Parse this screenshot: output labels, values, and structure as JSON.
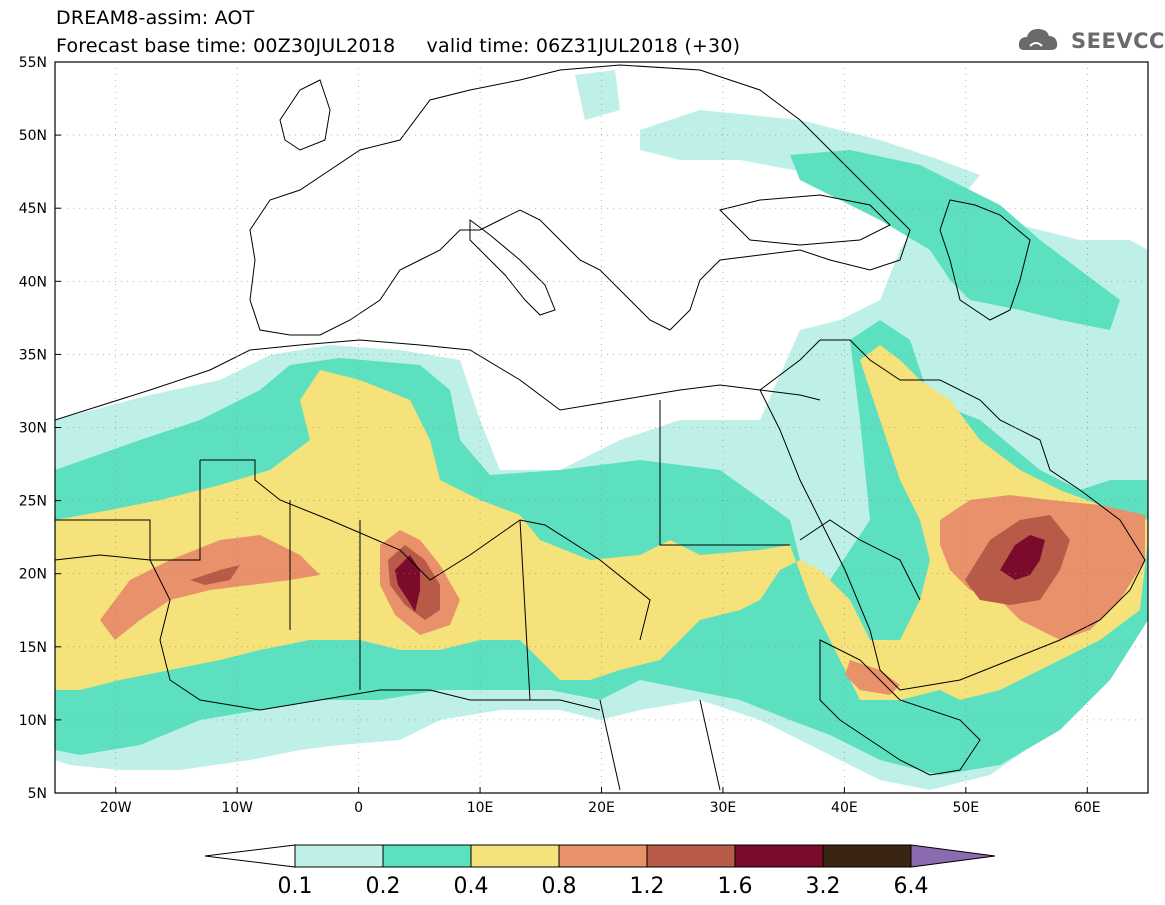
{
  "header": {
    "line1": "DREAM8-assim: AOT",
    "line2": "Forecast base time: 00Z30JUL2018     valid time: 06Z31JUL2018 (+30)"
  },
  "logo": {
    "text": "SEEVCCC",
    "icon": "cloud-logo-icon"
  },
  "map": {
    "lon_range": [
      -25,
      65
    ],
    "lat_range": [
      5,
      55
    ],
    "lat_labels": [
      "55N",
      "50N",
      "45N",
      "40N",
      "35N",
      "30N",
      "25N",
      "20N",
      "15N",
      "10N",
      "5N"
    ],
    "lon_labels": [
      "20W",
      "10W",
      "0",
      "10E",
      "20E",
      "30E",
      "40E",
      "50E",
      "60E"
    ]
  },
  "colorbar": {
    "levels": [
      "0.1",
      "0.2",
      "0.4",
      "0.8",
      "1.2",
      "1.6",
      "3.2",
      "6.4"
    ],
    "colors": [
      "#ffffff",
      "#bff0e8",
      "#5ce0bf",
      "#f5e27a",
      "#e8916a",
      "#b75a48",
      "#7c0a2a",
      "#3a2414",
      "#8b6bb0"
    ]
  },
  "colors": {
    "c1": "#bff0e8",
    "c2": "#5ce0bf",
    "c3": "#f5e27a",
    "c4": "#e8916a",
    "c5": "#b75a48",
    "c6": "#7c0a2a"
  }
}
